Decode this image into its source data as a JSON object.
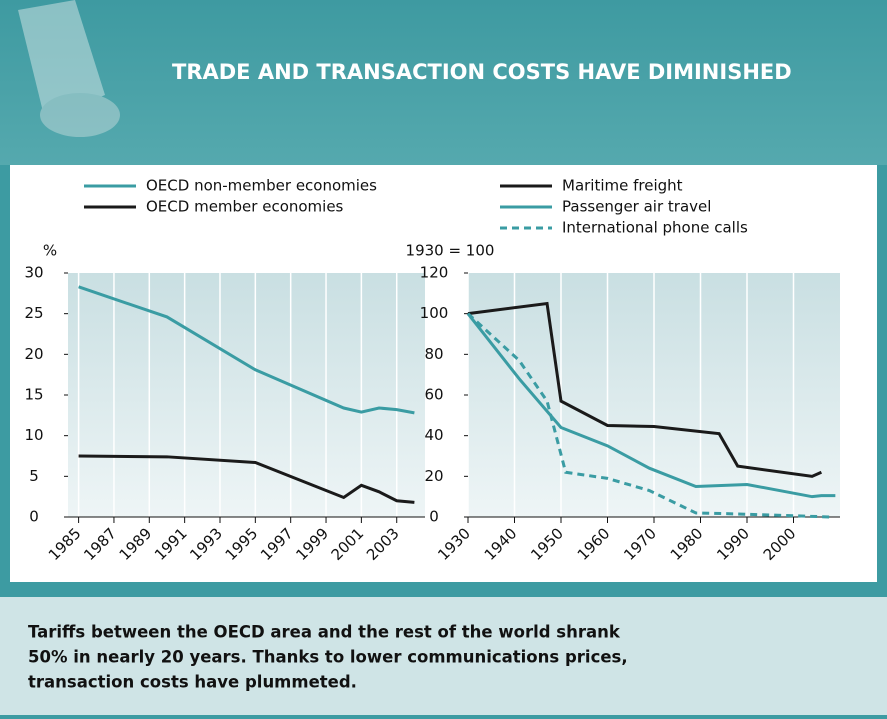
{
  "header": {
    "title": "TRADE AND TRANSACTION COSTS HAVE DIMINISHED"
  },
  "chart_data": [
    {
      "type": "line",
      "y_label": "%",
      "xlim": [
        1984.4,
        2004.6
      ],
      "ylim": [
        0,
        30
      ],
      "xticks": [
        1985,
        1987,
        1989,
        1991,
        1993,
        1995,
        1997,
        1999,
        2001,
        2003
      ],
      "yticks": [
        0,
        5,
        10,
        15,
        20,
        25,
        30
      ],
      "grid": true,
      "series": [
        {
          "name": "OECD non-member economies",
          "color": "#3a9ca3",
          "style": "solid",
          "x": [
            1985,
            1990,
            1995,
            2000,
            2001,
            2002,
            2003,
            2004
          ],
          "values": [
            28.3,
            24.6,
            18.1,
            13.4,
            12.9,
            13.4,
            13.2,
            12.8
          ]
        },
        {
          "name": "OECD member economies",
          "color": "#1a1a1a",
          "style": "solid",
          "x": [
            1985,
            1990,
            1995,
            2000,
            2001,
            2002,
            2003,
            2004
          ],
          "values": [
            7.5,
            7.4,
            6.7,
            2.4,
            3.9,
            3.1,
            2.0,
            1.8
          ]
        }
      ]
    },
    {
      "type": "line",
      "y_label": "1930 = 100",
      "xlim": [
        1930,
        2010
      ],
      "ylim": [
        0,
        120
      ],
      "xticks": [
        1930,
        1940,
        1950,
        1960,
        1970,
        1980,
        1990,
        2000
      ],
      "yticks": [
        0,
        20,
        40,
        60,
        80,
        100,
        120
      ],
      "grid": true,
      "series": [
        {
          "name": "Maritime freight",
          "color": "#1a1a1a",
          "style": "solid",
          "x": [
            1930,
            1947,
            1950,
            1960,
            1970,
            1984,
            1988,
            2004,
            2006
          ],
          "values": [
            100,
            105,
            57,
            45,
            44.5,
            41,
            25,
            20,
            22
          ]
        },
        {
          "name": "Passenger air travel",
          "color": "#3a9ca3",
          "style": "solid",
          "x": [
            1930,
            1941,
            1950,
            1960,
            1969,
            1979,
            1990,
            2004,
            2006,
            2009
          ],
          "values": [
            100,
            68,
            44,
            35,
            24,
            15,
            16,
            10,
            10.5,
            10.5
          ]
        },
        {
          "name": "International phone calls",
          "color": "#3a9ca3",
          "style": "dashed",
          "x": [
            1930,
            1941,
            1947,
            1951,
            1960,
            1969,
            1979,
            1988,
            2008
          ],
          "values": [
            100,
            77,
            57,
            22,
            19,
            13,
            2,
            1.5,
            0
          ]
        }
      ]
    }
  ],
  "caption": [
    "Tariffs between the OECD area and the rest of the world shrank",
    "50% in nearly 20 years. Thanks to lower communications prices,",
    "transaction costs have plummeted."
  ]
}
